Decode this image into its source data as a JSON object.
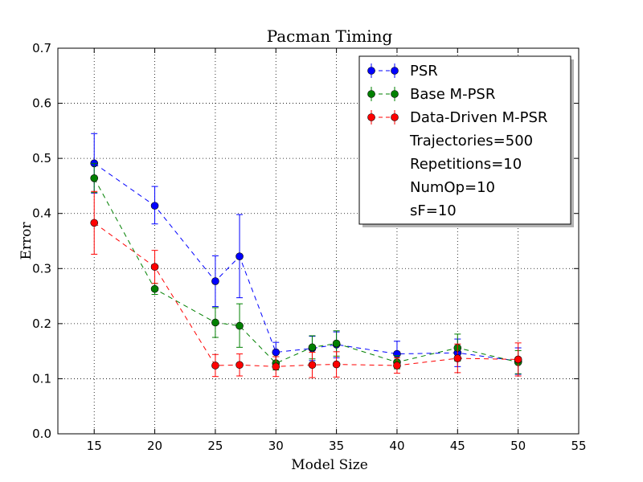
{
  "chart_data": {
    "type": "line",
    "title": "Pacman Timing",
    "xlabel": "Model Size",
    "ylabel": "Error",
    "xlim": [
      12,
      55
    ],
    "ylim": [
      0.0,
      0.7
    ],
    "xticks": [
      15,
      20,
      25,
      30,
      35,
      40,
      45,
      50,
      55
    ],
    "xtick_labels": [
      "15",
      "20",
      "25",
      "30",
      "35",
      "40",
      "45",
      "50",
      "55"
    ],
    "yticks": [
      0.0,
      0.1,
      0.2,
      0.3,
      0.4,
      0.5,
      0.6,
      0.7
    ],
    "ytick_labels": [
      "0.0",
      "0.1",
      "0.2",
      "0.3",
      "0.4",
      "0.5",
      "0.6",
      "0.7"
    ],
    "grid": true,
    "grid_style": "dotted",
    "legend_position": "top-right",
    "series": [
      {
        "name": "PSR",
        "color": "#0000ff",
        "marker": "circle",
        "line_style": "dashed",
        "x": [
          15,
          20,
          25,
          27,
          30,
          33,
          35,
          40,
          45,
          50
        ],
        "y": [
          0.491,
          0.414,
          0.277,
          0.322,
          0.148,
          0.155,
          0.162,
          0.145,
          0.147,
          0.132
        ],
        "err_low": [
          0.437,
          0.381,
          0.231,
          0.247,
          0.131,
          0.133,
          0.138,
          0.122,
          0.122,
          0.108
        ],
        "err_high": [
          0.545,
          0.449,
          0.323,
          0.398,
          0.166,
          0.177,
          0.185,
          0.168,
          0.172,
          0.156
        ]
      },
      {
        "name": "Base M-PSR",
        "color": "#008000",
        "marker": "circle",
        "line_style": "dashed",
        "x": [
          15,
          20,
          25,
          27,
          30,
          33,
          35,
          40,
          45,
          50
        ],
        "y": [
          0.464,
          0.263,
          0.202,
          0.196,
          0.128,
          0.157,
          0.164,
          0.13,
          0.156,
          0.13
        ],
        "err_low": [
          0.438,
          0.253,
          0.175,
          0.157,
          0.116,
          0.136,
          0.141,
          0.118,
          0.132,
          0.109
        ],
        "err_high": [
          0.491,
          0.273,
          0.229,
          0.236,
          0.14,
          0.178,
          0.187,
          0.142,
          0.181,
          0.151
        ]
      },
      {
        "name": "Data-Driven M-PSR",
        "color": "#ff0000",
        "marker": "circle",
        "line_style": "dashed",
        "x": [
          15,
          20,
          25,
          27,
          30,
          33,
          35,
          40,
          45,
          50
        ],
        "y": [
          0.383,
          0.303,
          0.124,
          0.125,
          0.122,
          0.125,
          0.126,
          0.124,
          0.137,
          0.135
        ],
        "err_low": [
          0.326,
          0.273,
          0.104,
          0.105,
          0.104,
          0.102,
          0.103,
          0.11,
          0.111,
          0.105
        ],
        "err_high": [
          0.44,
          0.333,
          0.144,
          0.145,
          0.14,
          0.148,
          0.149,
          0.138,
          0.163,
          0.165
        ]
      }
    ],
    "legend_extra": [
      "Trajectories=500",
      "Repetitions=10",
      "NumOp=10",
      "sF=10"
    ]
  }
}
